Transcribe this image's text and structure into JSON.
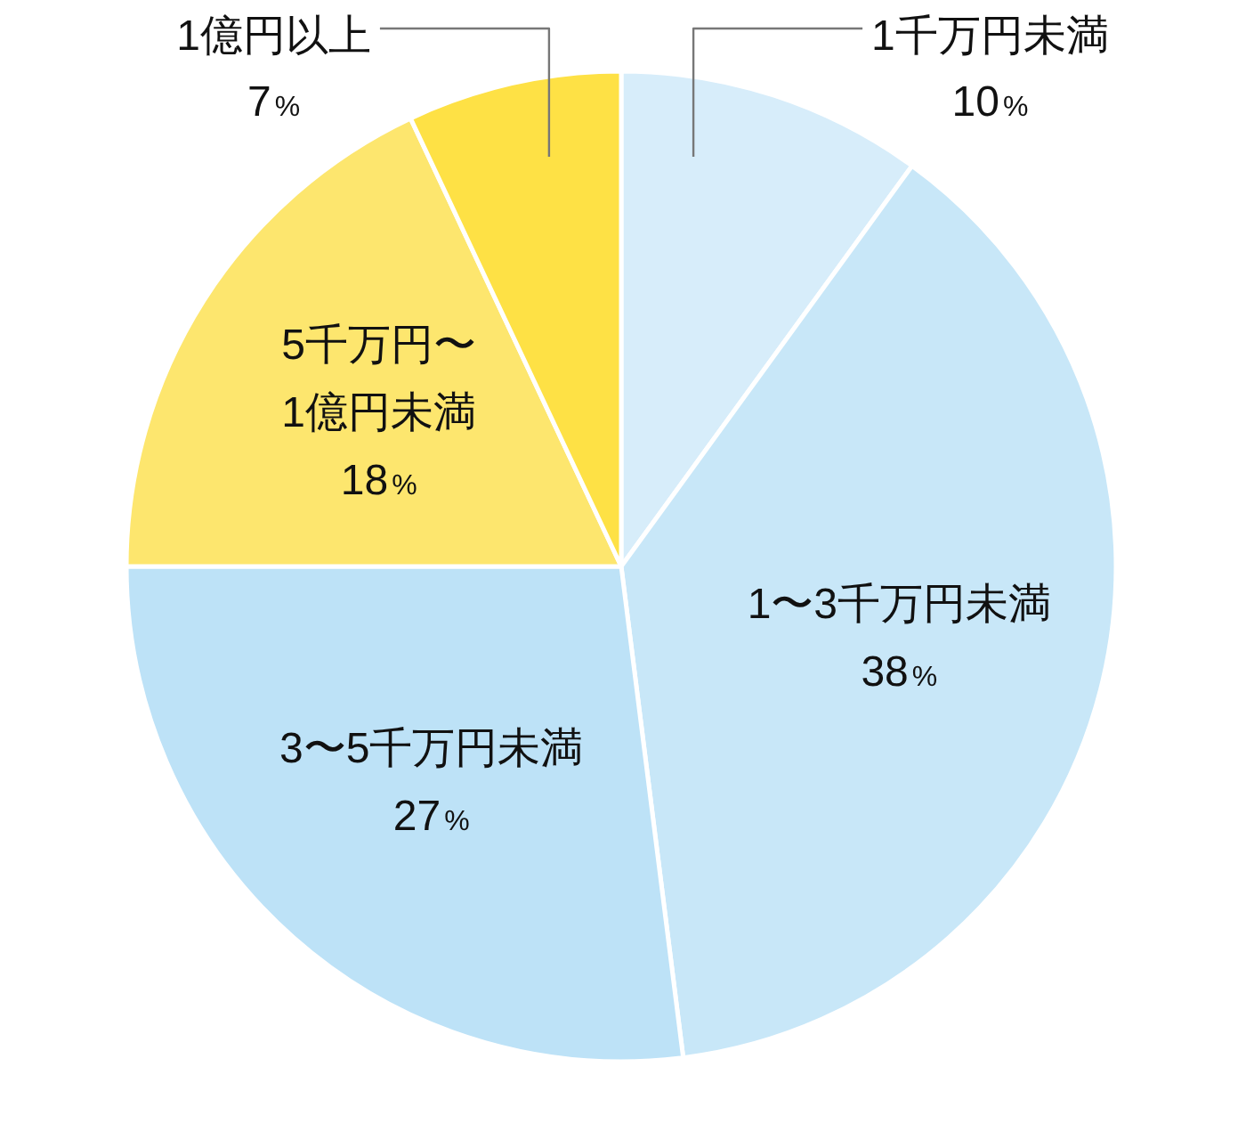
{
  "chart_data": {
    "type": "pie",
    "categories": [
      "1千万円未満",
      "1〜3千万円未満",
      "3〜5千万円未満",
      "5千万円〜1億円未満",
      "1億円以上"
    ],
    "values": [
      10,
      38,
      27,
      18,
      7
    ],
    "colors": [
      "#d7edfa",
      "#c8e7f8",
      "#bde2f7",
      "#fde66e",
      "#fee145"
    ],
    "value_labels": [
      "10%",
      "38%",
      "27%",
      "18%",
      "7%"
    ]
  }
}
